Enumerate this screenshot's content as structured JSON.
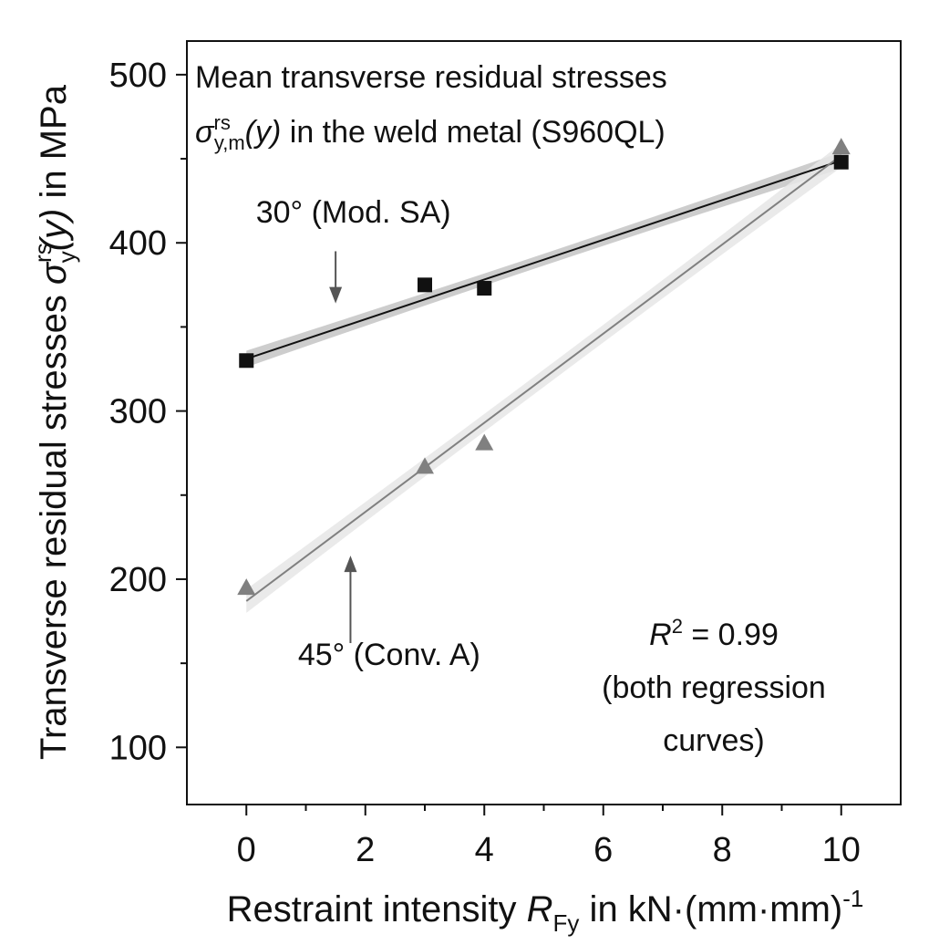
{
  "chart_data": {
    "type": "scatter",
    "title": "",
    "annotation_title_line1": "Mean transverse residual stresses",
    "annotation_title_line2_sigma": "σ",
    "annotation_title_line2_sup": "rs",
    "annotation_title_line2_sub": "y,m",
    "annotation_title_line2_arg": "(y)",
    "annotation_title_line2_rest": " in the weld metal (S960QL)",
    "xlabel": {
      "text": "Restraint intensity ",
      "var": "R",
      "sub": "Fy",
      "unit": " in kN·(mm·mm)",
      "sup": "-1"
    },
    "ylabel": {
      "text": "Transverse residual stresses ",
      "var": "σ",
      "sup": "rs",
      "sub": "y",
      "arg": "(y)",
      "unit": " in MPa"
    },
    "xlim": [
      -1,
      11
    ],
    "ylim": [
      66,
      520
    ],
    "x_ticks": [
      0,
      2,
      4,
      6,
      8,
      10
    ],
    "x_minor_ticks": [
      1,
      3,
      5,
      7,
      9
    ],
    "y_ticks": [
      100,
      200,
      300,
      400,
      500
    ],
    "y_minor_ticks": [
      150,
      250,
      350,
      450
    ],
    "grid": false,
    "series": [
      {
        "name": "30° (Mod. SA)",
        "marker": "square",
        "color": "#111111",
        "points": [
          {
            "x": 0,
            "y": 330
          },
          {
            "x": 3,
            "y": 375
          },
          {
            "x": 4,
            "y": 373
          },
          {
            "x": 10,
            "y": 448
          }
        ],
        "regression": {
          "x0": 0,
          "y0": 331,
          "x1": 10,
          "y1": 449
        },
        "band_color": "#c4c4c4"
      },
      {
        "name": "45° (Conv. A)",
        "marker": "triangle",
        "color": "#808080",
        "points": [
          {
            "x": 0,
            "y": 195
          },
          {
            "x": 3,
            "y": 267
          },
          {
            "x": 4,
            "y": 281
          },
          {
            "x": 10,
            "y": 457
          }
        ],
        "regression": {
          "x0": 0,
          "y0": 187,
          "x1": 10,
          "y1": 452
        },
        "band_color": "#e6e6e6"
      }
    ],
    "annotations": [
      {
        "id": "label-30",
        "text": "30° (Mod. SA)",
        "x": 1.8,
        "y": 412
      },
      {
        "id": "label-45",
        "text": "45° (Conv. A)",
        "x": 2.4,
        "y": 149
      }
    ],
    "arrows": [
      {
        "id": "arrow-30",
        "from": {
          "x": 1.5,
          "y": 395
        },
        "to": {
          "x": 1.5,
          "y": 364
        }
      },
      {
        "id": "arrow-45",
        "from": {
          "x": 1.75,
          "y": 162
        },
        "to": {
          "x": 1.75,
          "y": 214
        }
      }
    ],
    "r2": {
      "var": "R",
      "sup": "2",
      "value_text": " = 0.99",
      "line2": "(both regression",
      "line3": "curves)"
    }
  }
}
